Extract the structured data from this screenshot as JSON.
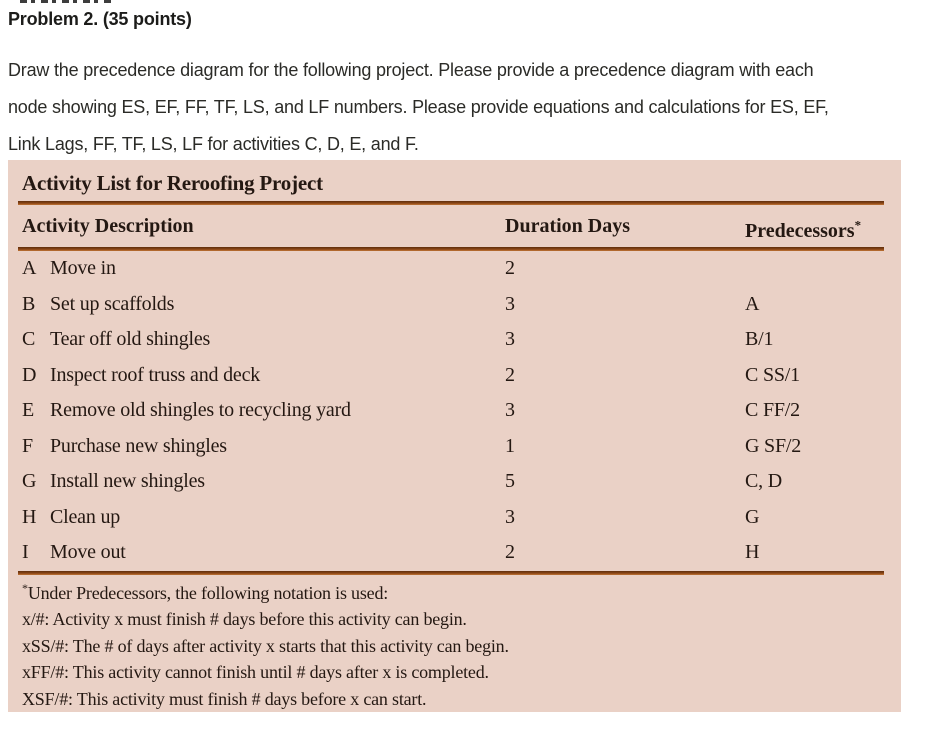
{
  "page": {
    "heading": "Problem 2. (35 points)",
    "statement_lines": [
      "Draw the precedence diagram for the following project. Please provide a precedence diagram with each",
      "node showing ES, EF, FF, TF, LS, and LF numbers. Please provide equations and calculations for ES, EF,",
      "Link Lags, FF, TF, LS, LF for activities C, D, E, and F."
    ]
  },
  "table": {
    "title": "Activity List for Reroofing Project",
    "columns": {
      "activity": "Activity Description",
      "duration": "Duration Days",
      "predecessors": "Predecessors",
      "predecessors_superscript": "*"
    },
    "rows": [
      {
        "letter": "A",
        "description": "Move in",
        "duration": "2",
        "predecessors": ""
      },
      {
        "letter": "B",
        "description": "Set up scaffolds",
        "duration": "3",
        "predecessors": "A"
      },
      {
        "letter": "C",
        "description": "Tear off old shingles",
        "duration": "3",
        "predecessors": "B/1"
      },
      {
        "letter": "D",
        "description": "Inspect roof truss and deck",
        "duration": "2",
        "predecessors": "C SS/1"
      },
      {
        "letter": "E",
        "description": "Remove old shingles to recycling yard",
        "duration": "3",
        "predecessors": "C FF/2"
      },
      {
        "letter": "F",
        "description": "Purchase new shingles",
        "duration": "1",
        "predecessors": "G SF/2"
      },
      {
        "letter": "G",
        "description": "Install new shingles",
        "duration": "5",
        "predecessors": "C, D"
      },
      {
        "letter": "H",
        "description": "Clean up",
        "duration": "3",
        "predecessors": "G"
      },
      {
        "letter": "I",
        "description": "Move out",
        "duration": "2",
        "predecessors": "H"
      }
    ],
    "footnote": {
      "star": "*",
      "lines": [
        "Under Predecessors, the following notation is used:",
        "x/#: Activity x must finish # days before this activity can begin.",
        "xSS/#: The # of days after activity x starts that this activity can begin.",
        "xFF/#: This activity cannot finish until # days after x is completed.",
        "XSF/#: This activity must finish # days before x can start."
      ]
    }
  },
  "colors": {
    "panel_background": "#ead1c6",
    "rule_brown": "#8a4516",
    "rule_orange": "#c07636",
    "text_dark": "#241812"
  }
}
